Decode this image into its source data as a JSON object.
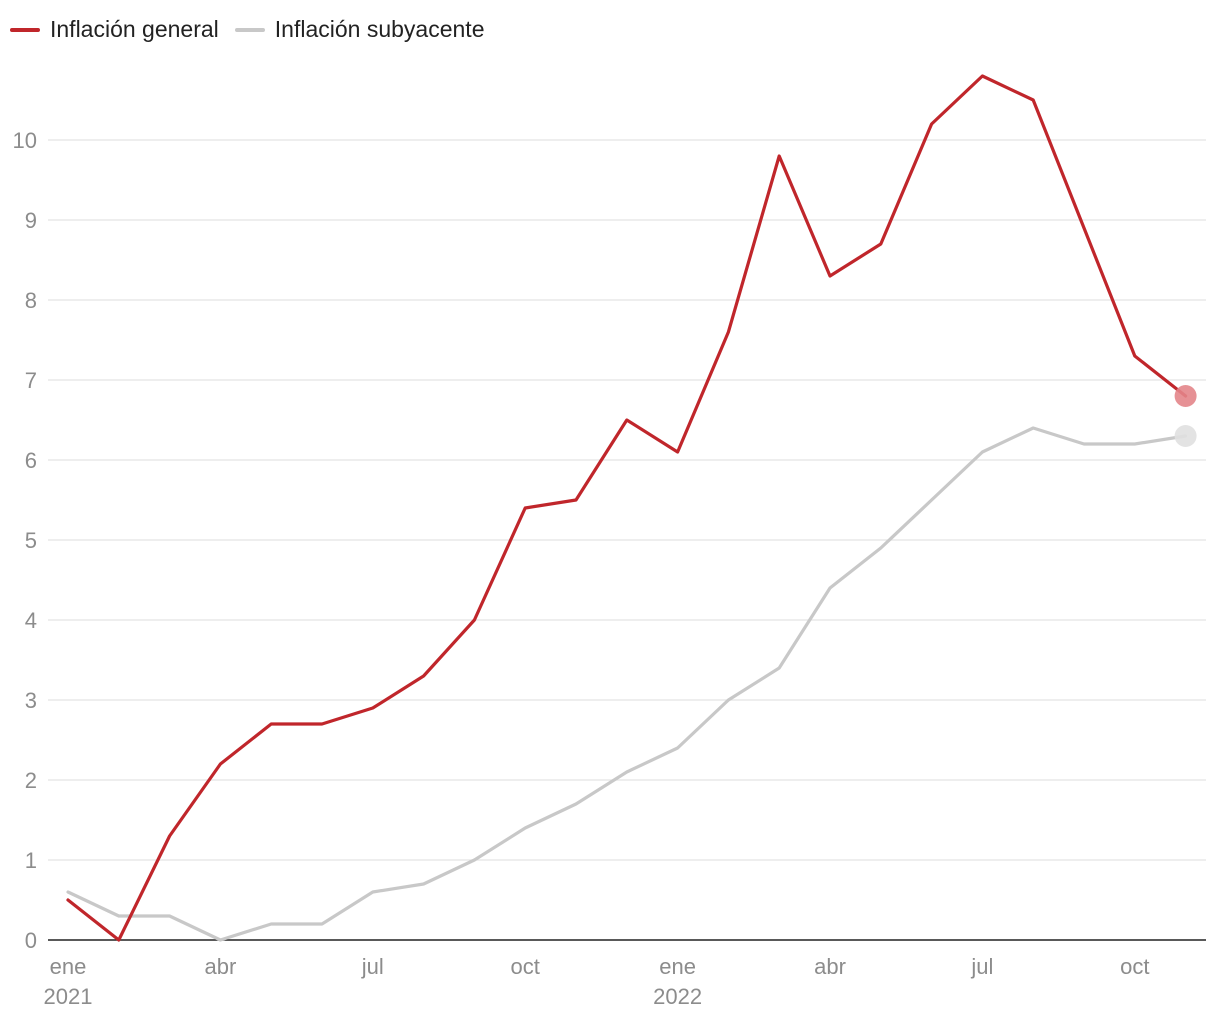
{
  "chart_data": {
    "type": "line",
    "title": "",
    "xlabel": "",
    "ylabel": "",
    "ylim": [
      0,
      10.9
    ],
    "grid": true,
    "legend_position": "top-left",
    "y_ticks": [
      0,
      1,
      2,
      3,
      4,
      5,
      6,
      7,
      8,
      9,
      10
    ],
    "y_tick_labels": [
      "0",
      "1",
      "2",
      "3",
      "4",
      "5",
      "6",
      "7",
      "8",
      "9",
      "10"
    ],
    "x": [
      "2021-01",
      "2021-02",
      "2021-03",
      "2021-04",
      "2021-05",
      "2021-06",
      "2021-07",
      "2021-08",
      "2021-09",
      "2021-10",
      "2021-11",
      "2021-12",
      "2022-01",
      "2022-02",
      "2022-03",
      "2022-04",
      "2022-05",
      "2022-06",
      "2022-07",
      "2022-08",
      "2022-09",
      "2022-10",
      "2022-11"
    ],
    "x_ticks": [
      {
        "x": "2021-01",
        "label": "ene",
        "year": "2021"
      },
      {
        "x": "2021-04",
        "label": "abr",
        "year": ""
      },
      {
        "x": "2021-07",
        "label": "jul",
        "year": ""
      },
      {
        "x": "2021-10",
        "label": "oct",
        "year": ""
      },
      {
        "x": "2022-01",
        "label": "ene",
        "year": "2022"
      },
      {
        "x": "2022-04",
        "label": "abr",
        "year": ""
      },
      {
        "x": "2022-07",
        "label": "jul",
        "year": ""
      },
      {
        "x": "2022-10",
        "label": "oct",
        "year": ""
      }
    ],
    "series": [
      {
        "name": "Inflación general",
        "color": "#c0262b",
        "marker_color": "#e3858a",
        "values": [
          0.5,
          0.0,
          1.3,
          2.2,
          2.7,
          2.7,
          2.9,
          3.3,
          4.0,
          5.4,
          5.5,
          6.5,
          6.1,
          7.6,
          9.8,
          8.3,
          8.7,
          10.2,
          10.8,
          10.5,
          8.9,
          7.3,
          6.8
        ]
      },
      {
        "name": "Inflación subyacente",
        "color": "#c8c8c8",
        "marker_color": "#e0e0e0",
        "values": [
          0.6,
          0.3,
          0.3,
          0.0,
          0.2,
          0.2,
          0.6,
          0.7,
          1.0,
          1.4,
          1.7,
          2.1,
          2.4,
          3.0,
          3.4,
          4.4,
          4.9,
          5.5,
          6.1,
          6.4,
          6.2,
          6.2,
          6.3
        ]
      }
    ]
  }
}
